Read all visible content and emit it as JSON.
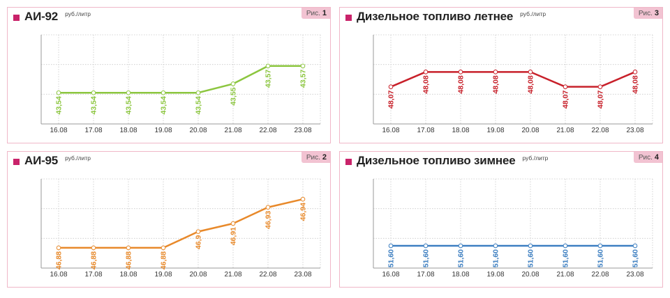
{
  "chart_data": [
    {
      "type": "line",
      "title": "АИ-92",
      "unit": "руб./литр",
      "figure_label": "Рис.",
      "figure_number": "1",
      "x": [
        "16.08",
        "17.08",
        "18.08",
        "19.08",
        "20.08",
        "21.08",
        "22.08",
        "23.08"
      ],
      "series": [
        {
          "values": [
            43.54,
            43.54,
            43.54,
            43.54,
            43.54,
            43.55,
            43.57,
            43.57
          ]
        }
      ],
      "labels": [
        "43,54",
        "43,54",
        "43,54",
        "43,54",
        "43,54",
        "43,55",
        "43,57",
        "43,57"
      ],
      "ylim": [
        43.505,
        43.605
      ],
      "color": "#8cc63f",
      "grid": true
    },
    {
      "type": "line",
      "title": "Дизельное топливо летнее",
      "unit": "руб./литр",
      "figure_label": "Рис.",
      "figure_number": "3",
      "x": [
        "16.08",
        "17.08",
        "18.08",
        "19.08",
        "20.08",
        "21.08",
        "22.08",
        "23.08"
      ],
      "series": [
        {
          "values": [
            48.07,
            48.08,
            48.08,
            48.08,
            48.08,
            48.07,
            48.07,
            48.08
          ]
        }
      ],
      "labels": [
        "48,07",
        "48,08",
        "48,08",
        "48,08",
        "48,08",
        "48,07",
        "48,07",
        "48,08"
      ],
      "ylim": [
        48.045,
        48.105
      ],
      "color": "#c8202a",
      "grid": true
    },
    {
      "type": "line",
      "title": "АИ-95",
      "unit": "руб./литр",
      "figure_label": "Рис.",
      "figure_number": "2",
      "x": [
        "16.08",
        "17.08",
        "18.08",
        "19.08",
        "20.08",
        "21.08",
        "22.08",
        "23.08"
      ],
      "series": [
        {
          "values": [
            46.88,
            46.88,
            46.88,
            46.88,
            46.9,
            46.91,
            46.93,
            46.94
          ]
        }
      ],
      "labels": [
        "46,88",
        "46,88",
        "46,88",
        "46,88",
        "46,9",
        "46,91",
        "46,93",
        "46,94"
      ],
      "ylim": [
        46.855,
        46.965
      ],
      "color": "#e8892a",
      "grid": true
    },
    {
      "type": "line",
      "title": "Дизельное топливо зимнее",
      "unit": "руб./литр",
      "figure_label": "Рис.",
      "figure_number": "4",
      "x": [
        "16.08",
        "17.08",
        "18.08",
        "19.08",
        "20.08",
        "21.08",
        "22.08",
        "23.08"
      ],
      "series": [
        {
          "values": [
            51.6,
            51.6,
            51.6,
            51.6,
            51.6,
            51.6,
            51.6,
            51.6
          ]
        }
      ],
      "labels": [
        "51,60",
        "51,60",
        "51,60",
        "51,60",
        "51,60",
        "51,60",
        "51,60",
        "51,60"
      ],
      "ylim": [
        51.55,
        51.75
      ],
      "color": "#3d7fc1",
      "grid": true
    }
  ]
}
